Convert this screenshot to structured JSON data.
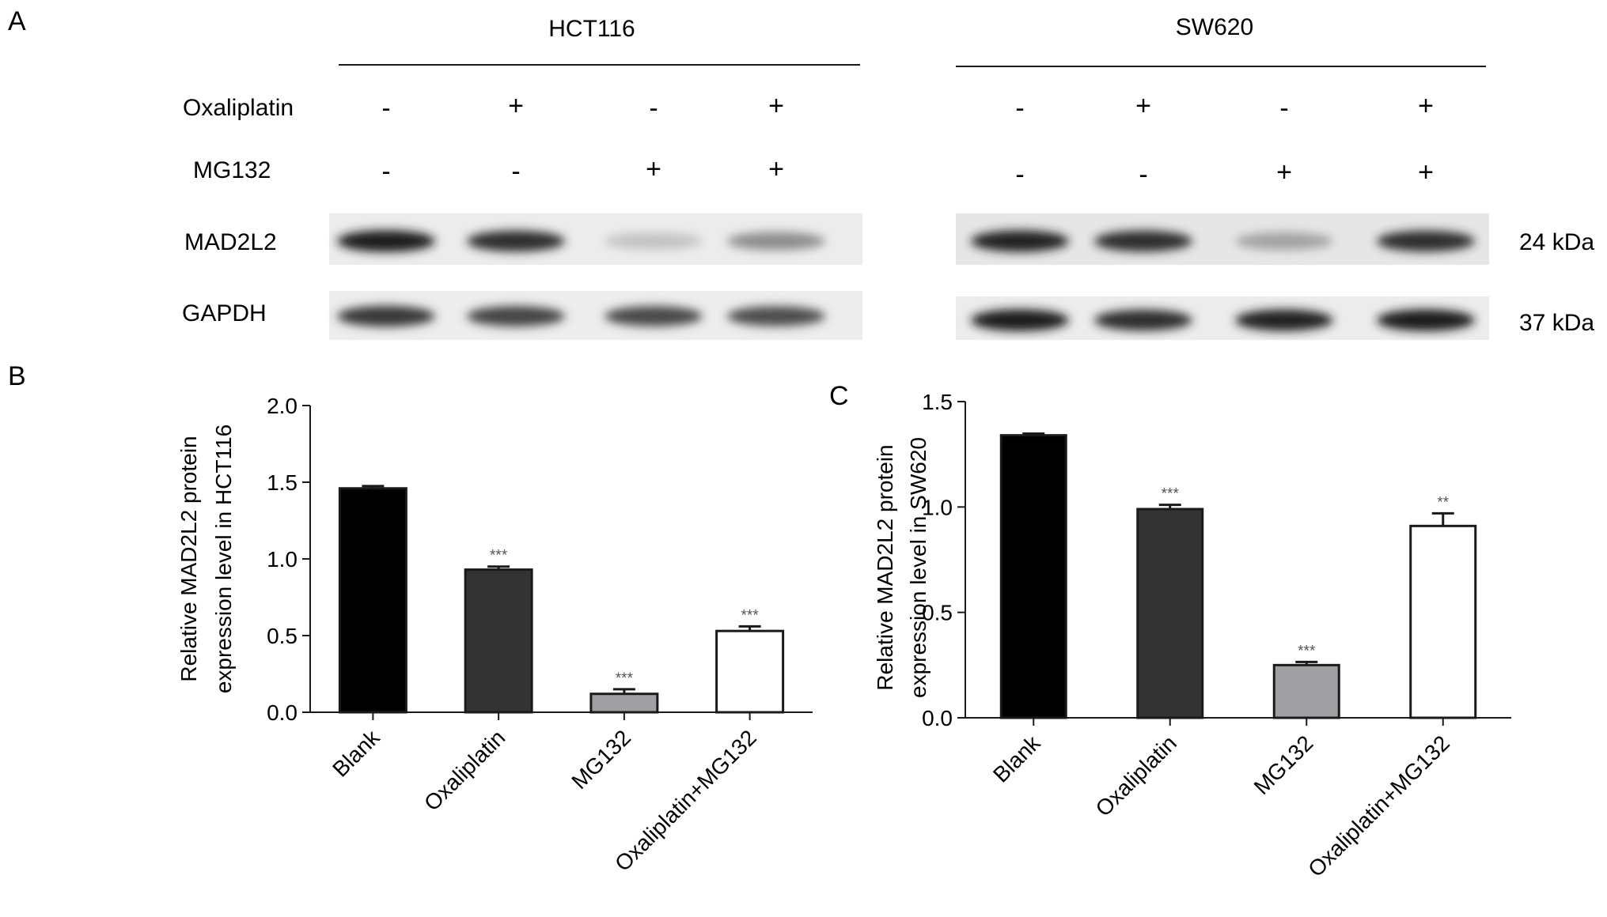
{
  "panel_a": {
    "letter": "A",
    "cell_lines": [
      "HCT116",
      "SW620"
    ],
    "row_labels": {
      "oxaliplatin": "Oxaliplatin",
      "mg132": "MG132",
      "mad2l2": "MAD2L2",
      "gapdh": "GAPDH"
    },
    "oxaliplatin_signs": [
      "-",
      "+",
      "-",
      "+"
    ],
    "mg132_signs": [
      "-",
      "-",
      "+",
      "+"
    ],
    "kda_labels": [
      "24 kDa",
      "37 kDa"
    ],
    "band_intensity": {
      "HCT116": {
        "MAD2L2": [
          0.95,
          0.85,
          0.15,
          0.4
        ],
        "GAPDH": [
          0.8,
          0.75,
          0.72,
          0.7
        ]
      },
      "SW620": {
        "MAD2L2": [
          0.9,
          0.85,
          0.3,
          0.85
        ],
        "GAPDH": [
          0.95,
          0.85,
          0.9,
          0.95
        ]
      }
    }
  },
  "panel_b": {
    "letter": "B"
  },
  "panel_c": {
    "letter": "C"
  },
  "colors": {
    "blank": "#000000",
    "oxaliplatin": "#333333",
    "mg132": "#a0a0a4",
    "combo": "#ffffff"
  },
  "chart_data": [
    {
      "type": "bar",
      "categories": [
        "Blank",
        "Oxaliplatin",
        "MG132",
        "Oxaliplatin+MG132"
      ],
      "values": [
        1.46,
        0.93,
        0.12,
        0.53
      ],
      "errors": [
        0.015,
        0.02,
        0.03,
        0.03
      ],
      "significance": [
        "",
        "***",
        "***",
        "***"
      ],
      "ylabel_lines": [
        "Relative MAD2L2 protein",
        "expression level in HCT116"
      ],
      "ylim": [
        0,
        2.0
      ],
      "yticks": [
        0.0,
        0.5,
        1.0,
        1.5,
        2.0
      ],
      "ytick_labels": [
        "0.0",
        "0.5",
        "1.0",
        "1.5",
        "2.0"
      ]
    },
    {
      "type": "bar",
      "categories": [
        "Blank",
        "Oxaliplatin",
        "MG132",
        "Oxaliplatin+MG132"
      ],
      "values": [
        1.34,
        0.99,
        0.25,
        0.91
      ],
      "errors": [
        0.008,
        0.02,
        0.015,
        0.06
      ],
      "significance": [
        "",
        "***",
        "***",
        "**"
      ],
      "ylabel_lines": [
        "Relative MAD2L2 protein",
        "expression level in SW620"
      ],
      "ylim": [
        0,
        1.5
      ],
      "yticks": [
        0.0,
        0.5,
        1.0,
        1.5
      ],
      "ytick_labels": [
        "0.0",
        "0.5",
        "1.0",
        "1.5"
      ]
    }
  ]
}
